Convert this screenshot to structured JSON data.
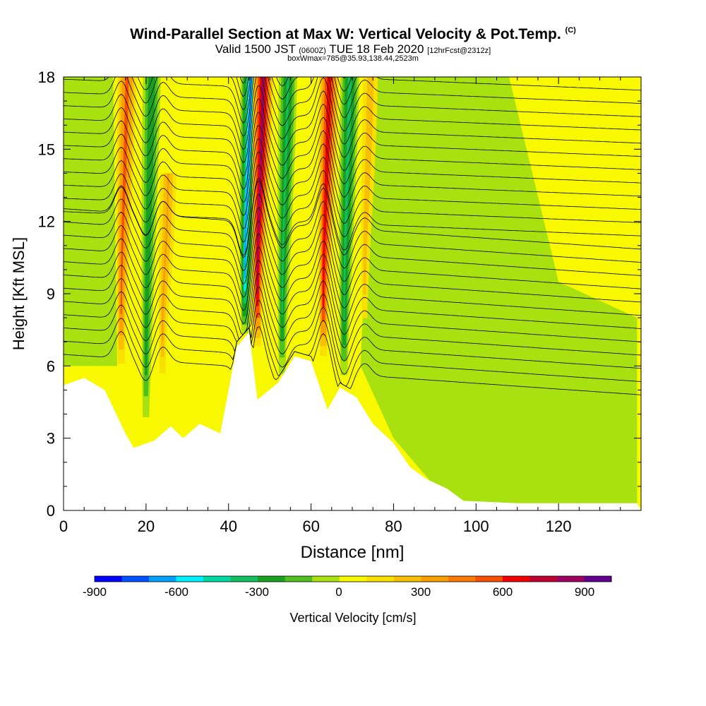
{
  "title": {
    "main": "Wind-Parallel Section at Max W: Vertical Velocity & Pot.Temp.",
    "copyright": "(C)",
    "valid_a": "Valid 1500 JST",
    "valid_zulu": "(0600Z)",
    "valid_b": "TUE 18 Feb 2020",
    "forecast": "[12hrFcst@2312z]",
    "box": "boxWmax=785@35.93,138.44,2523m"
  },
  "colorbar": {
    "label": "Vertical Velocity [cm/s]",
    "tick_labels": [
      "-900",
      "-600",
      "-300",
      "0",
      "300",
      "600",
      "900"
    ],
    "colors": [
      "#0000ff",
      "#0050ff",
      "#00a0ff",
      "#00f0ff",
      "#00d8a0",
      "#10c060",
      "#18a020",
      "#50c020",
      "#a8e010",
      "#f8f800",
      "#f8e000",
      "#f8c000",
      "#f8a000",
      "#f87800",
      "#f85000",
      "#f00000",
      "#c00030",
      "#a00060",
      "#600090"
    ]
  },
  "chart_data": {
    "type": "heatmap",
    "xlabel": "Distance [nm]",
    "ylabel": "Height [Kft MSL]",
    "xlim": [
      0,
      140
    ],
    "ylim": [
      0,
      18
    ],
    "x_ticks": [
      0,
      20,
      40,
      60,
      80,
      100,
      120
    ],
    "y_ticks": [
      0,
      3,
      6,
      9,
      12,
      15,
      18
    ],
    "field": "Vertical Velocity [cm/s]",
    "contour_field": "Potential Temperature",
    "background_value": 0,
    "terrain_kft": [
      [
        0,
        5.2
      ],
      [
        5,
        5.5
      ],
      [
        10,
        5.0
      ],
      [
        15,
        3.2
      ],
      [
        17,
        2.6
      ],
      [
        22,
        2.9
      ],
      [
        26,
        3.5
      ],
      [
        29,
        3.0
      ],
      [
        33,
        3.6
      ],
      [
        38,
        3.2
      ],
      [
        42,
        6.8
      ],
      [
        45,
        7.4
      ],
      [
        47,
        4.6
      ],
      [
        52,
        5.3
      ],
      [
        56,
        6.4
      ],
      [
        60,
        6.2
      ],
      [
        64,
        4.2
      ],
      [
        67,
        5.1
      ],
      [
        71,
        4.7
      ],
      [
        75,
        3.6
      ],
      [
        80,
        2.8
      ],
      [
        84,
        1.8
      ],
      [
        88,
        1.3
      ],
      [
        93,
        0.9
      ],
      [
        97,
        0.4
      ],
      [
        110,
        0.3
      ],
      [
        139,
        0.3
      ]
    ],
    "velocity_features": [
      {
        "x": 14,
        "y_bottom": 5.5,
        "y_top": 18,
        "max_cms": 450,
        "sign": "up"
      },
      {
        "x": 20,
        "y_bottom": 3.0,
        "y_top": 18,
        "max_cms": -350,
        "sign": "down"
      },
      {
        "x": 24,
        "y_bottom": 5.0,
        "y_top": 14,
        "max_cms": 250,
        "sign": "up"
      },
      {
        "x": 44,
        "y_bottom": 7.0,
        "y_top": 18,
        "max_cms": -700,
        "sign": "down"
      },
      {
        "x": 47,
        "y_bottom": 6.5,
        "y_top": 18,
        "max_cms": 785,
        "sign": "up"
      },
      {
        "x": 53,
        "y_bottom": 5.0,
        "y_top": 18,
        "max_cms": -400,
        "sign": "down"
      },
      {
        "x": 63,
        "y_bottom": 6.0,
        "y_top": 18,
        "max_cms": 650,
        "sign": "up"
      },
      {
        "x": 68,
        "y_bottom": 5.0,
        "y_top": 18,
        "max_cms": -450,
        "sign": "down"
      },
      {
        "x": 73,
        "y_bottom": 7.0,
        "y_top": 18,
        "max_cms": 200,
        "sign": "up"
      }
    ]
  }
}
